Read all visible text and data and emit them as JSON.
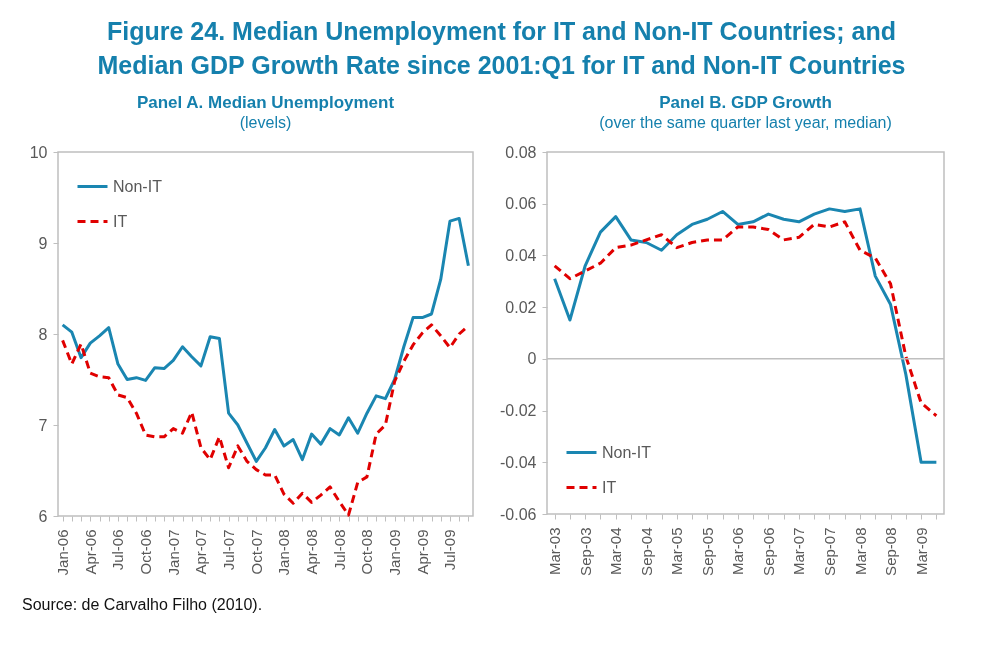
{
  "chart_data": [
    {
      "type": "other",
      "title": "Figure 24. Median Unemployment for IT and Non-IT Countries; and Median GDP Growth Rate since 2001:Q1 for IT and Non-IT Countries",
      "annotations": [
        "Source: de Carvalho Filho (2010)."
      ]
    },
    {
      "type": "line",
      "title": "Panel A. Median Unemployment",
      "subtitle": "(levels)",
      "categories": [
        "Jan-06",
        null,
        null,
        "Apr-06",
        null,
        null,
        "Jul-06",
        null,
        null,
        "Oct-06",
        null,
        null,
        "Jan-07",
        null,
        null,
        "Apr-07",
        null,
        null,
        "Jul-07",
        null,
        null,
        "Oct-07",
        null,
        null,
        "Jan-08",
        null,
        null,
        "Apr-08",
        null,
        null,
        "Jul-08",
        null,
        null,
        "Oct-08",
        null,
        null,
        "Jan-09",
        null,
        null,
        "Apr-09",
        null,
        null,
        "Jul-09",
        null,
        null
      ],
      "ylim": [
        6,
        10
      ],
      "yticks": [
        6,
        7,
        8,
        9,
        10
      ],
      "grid": false,
      "legend": "top left",
      "marker": "none",
      "series": [
        {
          "name": "Non-IT",
          "color": "#1a86b1",
          "line_style": "solid",
          "values": [
            8.1,
            8.02,
            7.74,
            7.9,
            7.98,
            8.07,
            7.67,
            7.5,
            7.52,
            7.49,
            7.63,
            7.62,
            7.71,
            7.86,
            7.75,
            7.65,
            7.97,
            7.95,
            7.13,
            7.0,
            6.8,
            6.6,
            6.75,
            6.95,
            6.77,
            6.84,
            6.62,
            6.9,
            6.79,
            6.96,
            6.89,
            7.08,
            6.91,
            7.13,
            7.32,
            7.29,
            7.5,
            7.86,
            8.18,
            8.18,
            8.22,
            8.6,
            9.24,
            9.27,
            8.75
          ]
        },
        {
          "name": "IT",
          "color": "#e00000",
          "line_style": "dashed",
          "values": [
            7.93,
            7.67,
            7.89,
            7.57,
            7.53,
            7.52,
            7.33,
            7.3,
            7.13,
            6.89,
            6.87,
            6.87,
            6.96,
            6.91,
            7.14,
            6.75,
            6.62,
            6.87,
            6.53,
            6.77,
            6.6,
            6.51,
            6.45,
            6.45,
            6.24,
            6.14,
            6.25,
            6.15,
            6.23,
            6.32,
            6.16,
            6.01,
            6.37,
            6.43,
            6.9,
            7.0,
            7.48,
            7.7,
            7.88,
            8.01,
            8.1,
            7.98,
            7.85,
            8.0,
            8.09
          ]
        }
      ]
    },
    {
      "type": "line",
      "title": "Panel B. GDP Growth",
      "subtitle": "(over the same quarter last year, median)",
      "categories": [
        "Mar-03",
        null,
        "Sep-03",
        null,
        "Mar-04",
        null,
        "Sep-04",
        null,
        "Mar-05",
        null,
        "Sep-05",
        null,
        "Mar-06",
        null,
        "Sep-06",
        null,
        "Mar-07",
        null,
        "Sep-07",
        null,
        "Mar-08",
        null,
        "Sep-08",
        null,
        "Mar-09",
        null
      ],
      "ylim": [
        -0.06,
        0.08
      ],
      "yticks": [
        -0.06,
        -0.04,
        -0.02,
        0,
        0.02,
        0.04,
        0.06,
        0.08
      ],
      "grid": false,
      "legend": "bottom left",
      "marker": "none",
      "ref_lines": [
        {
          "axis": "y",
          "value": 0,
          "color": "#bfbfbf"
        }
      ],
      "series": [
        {
          "name": "Non-IT",
          "color": "#1a86b1",
          "line_style": "solid",
          "values": [
            0.031,
            0.015,
            0.036,
            0.049,
            0.055,
            0.046,
            0.045,
            0.042,
            0.048,
            0.052,
            0.054,
            0.057,
            0.052,
            0.053,
            0.056,
            0.054,
            0.053,
            0.056,
            0.058,
            0.057,
            0.058,
            0.032,
            0.021,
            -0.006,
            -0.04,
            -0.04
          ]
        },
        {
          "name": "IT",
          "color": "#e00000",
          "line_style": "dashed",
          "values": [
            0.036,
            0.031,
            0.034,
            0.037,
            0.043,
            0.044,
            0.046,
            0.048,
            0.043,
            0.045,
            0.046,
            0.046,
            0.051,
            0.051,
            0.05,
            0.046,
            0.047,
            0.052,
            0.051,
            0.053,
            0.042,
            0.039,
            0.029,
            0.001,
            -0.017,
            -0.022
          ]
        }
      ]
    }
  ]
}
